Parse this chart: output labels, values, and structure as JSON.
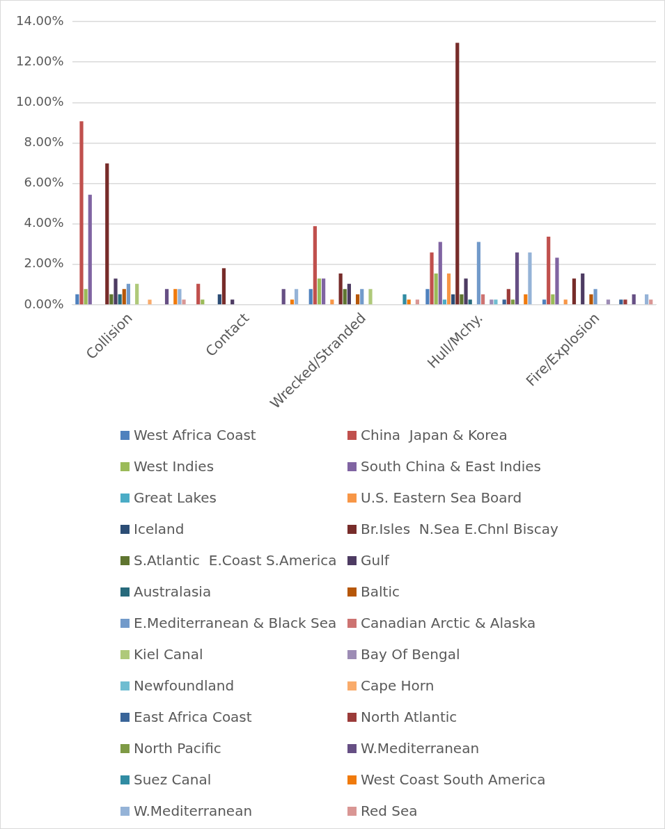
{
  "chart_data": {
    "type": "bar",
    "categories": [
      "Collision",
      "Contact",
      "Wrecked/Stranded",
      "Hull/Mchy.",
      "Fire/Explosion"
    ],
    "ylim": [
      0,
      14
    ],
    "yticks": [
      {
        "value": 0,
        "label": "0.00%"
      },
      {
        "value": 2,
        "label": "2.00%"
      },
      {
        "value": 4,
        "label": "4.00%"
      },
      {
        "value": 6,
        "label": "6.00%"
      },
      {
        "value": 8,
        "label": "8.00%"
      },
      {
        "value": 10,
        "label": "10.00%"
      },
      {
        "value": 12,
        "label": "12.00%"
      },
      {
        "value": 14,
        "label": "14.00%"
      }
    ],
    "grid": "y",
    "legend": "bottom",
    "series": [
      {
        "name": "West Africa Coast",
        "color": "#4f81bd",
        "values": [
          0.52,
          null,
          0.78,
          0.78,
          0.26
        ]
      },
      {
        "name": "China  Japan & Korea",
        "color": "#c0504d",
        "values": [
          9.07,
          1.04,
          3.89,
          2.59,
          3.37
        ]
      },
      {
        "name": "West Indies",
        "color": "#9bbb59",
        "values": [
          0.78,
          0.26,
          1.3,
          1.55,
          0.52
        ]
      },
      {
        "name": "South China & East Indies",
        "color": "#8064a2",
        "values": [
          5.44,
          null,
          1.3,
          3.11,
          2.33
        ]
      },
      {
        "name": "Great Lakes",
        "color": "#4bacc6",
        "values": [
          null,
          null,
          null,
          0.26,
          null
        ]
      },
      {
        "name": "U.S. Eastern Sea Board",
        "color": "#f79646",
        "values": [
          null,
          null,
          0.26,
          1.55,
          0.26
        ]
      },
      {
        "name": "Iceland",
        "color": "#2c4d75",
        "values": [
          null,
          0.52,
          null,
          0.52,
          null
        ]
      },
      {
        "name": "Br.Isles  N.Sea E.Chnl Biscay",
        "color": "#772c2a",
        "values": [
          6.99,
          1.81,
          1.55,
          12.95,
          1.3
        ]
      },
      {
        "name": "S.Atlantic  E.Coast S.America",
        "color": "#5f7530",
        "values": [
          0.52,
          null,
          0.78,
          0.52,
          null
        ]
      },
      {
        "name": "Gulf",
        "color": "#4d3b62",
        "values": [
          1.3,
          0.26,
          1.04,
          1.3,
          1.55
        ]
      },
      {
        "name": "Australasia",
        "color": "#276a7c",
        "values": [
          0.52,
          null,
          null,
          0.26,
          null
        ]
      },
      {
        "name": "Baltic",
        "color": "#b65708",
        "values": [
          0.78,
          null,
          0.52,
          null,
          0.52
        ]
      },
      {
        "name": "E.Mediterranean & Black Sea",
        "color": "#729aca",
        "values": [
          1.04,
          null,
          0.78,
          3.11,
          0.78
        ]
      },
      {
        "name": "Canadian Arctic & Alaska",
        "color": "#cd7371",
        "values": [
          null,
          null,
          null,
          0.52,
          null
        ]
      },
      {
        "name": "Kiel Canal",
        "color": "#afc97a",
        "values": [
          1.04,
          null,
          0.78,
          null,
          null
        ]
      },
      {
        "name": "Bay Of Bengal",
        "color": "#9d8cb5",
        "values": [
          null,
          null,
          null,
          0.26,
          0.26
        ]
      },
      {
        "name": "Newfoundland",
        "color": "#6fbdd1",
        "values": [
          null,
          null,
          null,
          0.26,
          null
        ]
      },
      {
        "name": "Cape Horn",
        "color": "#f9ab6b",
        "values": [
          0.26,
          null,
          null,
          null,
          null
        ]
      },
      {
        "name": "East Africa Coast",
        "color": "#3a6599",
        "values": [
          null,
          null,
          null,
          0.26,
          0.26
        ]
      },
      {
        "name": "North Atlantic",
        "color": "#9b3b39",
        "values": [
          null,
          null,
          null,
          0.78,
          0.26
        ]
      },
      {
        "name": "North Pacific",
        "color": "#7e9a45",
        "values": [
          null,
          null,
          null,
          0.26,
          null
        ]
      },
      {
        "name": "W.Mediterranean",
        "color": "#664f84",
        "values": [
          0.78,
          0.78,
          null,
          2.59,
          0.52
        ]
      },
      {
        "name": "Suez Canal",
        "color": "#318ca3",
        "values": [
          null,
          null,
          0.52,
          null,
          null
        ]
      },
      {
        "name": "West Coast South America",
        "color": "#f07a0c",
        "values": [
          0.78,
          0.26,
          0.26,
          0.52,
          null
        ]
      },
      {
        "name": "W.Mediterranean",
        "color": "#95b3d7",
        "values": [
          0.78,
          0.78,
          null,
          2.59,
          0.52
        ]
      },
      {
        "name": "Red Sea",
        "color": "#d99694",
        "values": [
          0.26,
          null,
          0.26,
          null,
          0.26
        ]
      }
    ]
  }
}
